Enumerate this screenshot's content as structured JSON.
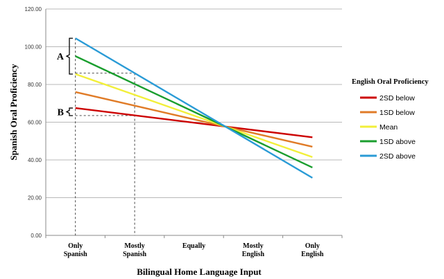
{
  "chart_data": {
    "type": "line",
    "xlabel": "Bilingual Home Language Input",
    "ylabel": "Spanish Oral Proficiency",
    "categories": [
      [
        "Only",
        "Spanish"
      ],
      [
        "Mostly",
        "Spanish"
      ],
      [
        "Equally"
      ],
      [
        "Mostly",
        "English"
      ],
      [
        "Only",
        "English"
      ]
    ],
    "ylim": [
      0,
      120
    ],
    "yticks": [
      "0.00",
      "20.00",
      "40.00",
      "60.00",
      "80.00",
      "100.00",
      "120.00"
    ],
    "grid": true,
    "legend": {
      "title": "English Oral Proficiency",
      "placement": "right"
    },
    "series": [
      {
        "name": "2SD below",
        "color": "#cc0000",
        "start": 67.5,
        "end": 52.0
      },
      {
        "name": "1SD below",
        "color": "#e07b27",
        "start": 76.0,
        "end": 47.0
      },
      {
        "name": "Mean",
        "color": "#f2ef3a",
        "start": 85.5,
        "end": 41.5
      },
      {
        "name": "1SD above",
        "color": "#1a9e2e",
        "start": 95.0,
        "end": 36.0
      },
      {
        "name": "2SD above",
        "color": "#2a9bd6",
        "start": 104.5,
        "end": 30.5
      }
    ],
    "annotations": [
      {
        "label": "A",
        "from": 85.5,
        "to": 104.5
      },
      {
        "label": "B",
        "from": 63.5,
        "to": 67.5
      }
    ]
  }
}
